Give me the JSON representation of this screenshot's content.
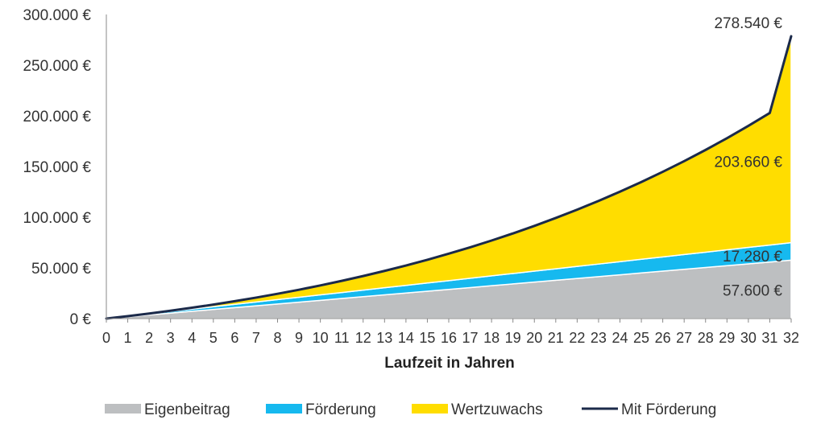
{
  "chart_data": {
    "type": "area",
    "title": "",
    "xlabel": "Laufzeit in Jahren",
    "ylabel": "",
    "xlim": [
      0,
      32
    ],
    "ylim": [
      0,
      300000
    ],
    "grid": false,
    "legend_position": "bottom",
    "x": [
      0,
      1,
      2,
      3,
      4,
      5,
      6,
      7,
      8,
      9,
      10,
      11,
      12,
      13,
      14,
      15,
      16,
      17,
      18,
      19,
      20,
      21,
      22,
      23,
      24,
      25,
      26,
      27,
      28,
      29,
      30,
      31,
      32
    ],
    "x_tick_labels": [
      "0",
      "1",
      "2",
      "3",
      "4",
      "5",
      "6",
      "7",
      "8",
      "9",
      "10",
      "11",
      "12",
      "13",
      "14",
      "15",
      "16",
      "17",
      "18",
      "19",
      "20",
      "21",
      "22",
      "23",
      "24",
      "25",
      "26",
      "27",
      "28",
      "29",
      "30",
      "31",
      "32"
    ],
    "y_tick_values": [
      0,
      50000,
      100000,
      150000,
      200000,
      250000,
      300000
    ],
    "y_tick_labels": [
      "0 €",
      "50.000 €",
      "100.000 €",
      "150.000 €",
      "200.000 €",
      "250.000 €",
      "300.000 €"
    ],
    "series": [
      {
        "name": "Eigenbeitrag",
        "kind": "stacked-area",
        "color": "#bdbfc1",
        "values": [
          0,
          1800,
          3600,
          5400,
          7200,
          9000,
          10800,
          12600,
          14400,
          16200,
          18000,
          19800,
          21600,
          23400,
          25200,
          27000,
          28800,
          30600,
          32400,
          34200,
          36000,
          37800,
          39600,
          41400,
          43200,
          45000,
          46800,
          48600,
          50400,
          52200,
          54000,
          55800,
          57600
        ]
      },
      {
        "name": "Förderung",
        "kind": "stacked-area",
        "color": "#16b9ef",
        "values": [
          0,
          540,
          1080,
          1620,
          2160,
          2700,
          3240,
          3780,
          4320,
          4860,
          5400,
          5940,
          6480,
          7020,
          7560,
          8100,
          8640,
          9180,
          9720,
          10260,
          10800,
          11340,
          11880,
          12420,
          12960,
          13500,
          14040,
          14580,
          15120,
          15660,
          16200,
          16740,
          17280
        ]
      },
      {
        "name": "Wertzuwachs",
        "kind": "stacked-area",
        "color": "#ffdd00",
        "values": [
          0,
          77,
          316,
          727,
          1321,
          2107,
          3095,
          4295,
          5719,
          7377,
          9282,
          11444,
          13876,
          16591,
          19601,
          22920,
          26560,
          30537,
          34863,
          39555,
          44626,
          50093,
          55972,
          62279,
          69031,
          76247,
          83942,
          92137,
          100849,
          110098,
          119906,
          130290,
          203660
        ]
      },
      {
        "name": "Mit Förderung",
        "kind": "line",
        "color": "#1b2a4a",
        "values": [
          0,
          2417,
          4996,
          7747,
          10681,
          13807,
          17135,
          20675,
          24439,
          28437,
          32682,
          37184,
          41956,
          47011,
          52361,
          58020,
          64000,
          70317,
          76983,
          84015,
          91426,
          99233,
          107452,
          116099,
          125191,
          134747,
          144782,
          155317,
          166369,
          177958,
          190106,
          202830,
          278540
        ]
      }
    ],
    "annotations": [
      {
        "text": "278.540 €",
        "x": 32,
        "y": 278540,
        "series": "Mit Förderung"
      },
      {
        "text": "203.660 €",
        "x": 32,
        "y": 155000,
        "series": "Wertzuwachs"
      },
      {
        "text": "17.280 €",
        "x": 32,
        "y": 62000,
        "series": "Förderung"
      },
      {
        "text": "57.600 €",
        "x": 32,
        "y": 28000,
        "series": "Eigenbeitrag"
      }
    ]
  }
}
